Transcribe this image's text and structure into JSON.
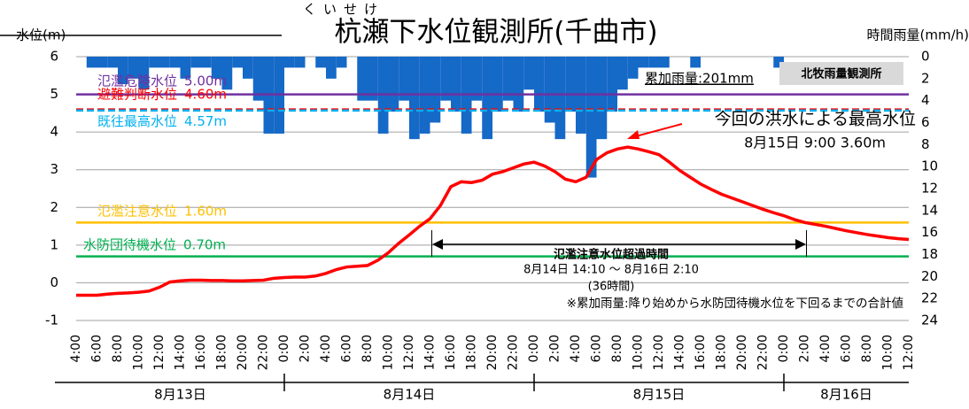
{
  "chart_data": {
    "type": "line",
    "title": "杭瀬下水位観測所(千曲市)",
    "title_ruby": "くいせけ",
    "y_label": "水位(m)",
    "y2_label": "時間雨量(mm/h)",
    "categories": [
      "4:00",
      null,
      "6:00",
      null,
      "8:00",
      null,
      "10:00",
      null,
      "12:00",
      null,
      "14:00",
      null,
      "16:00",
      null,
      "18:00",
      null,
      "20:00",
      null,
      "22:00",
      null,
      "0:00",
      null,
      "2:00",
      null,
      "4:00",
      null,
      "6:00",
      null,
      "8:00",
      null,
      "10:00",
      null,
      "12:00",
      null,
      "14:00",
      null,
      "16:00",
      null,
      "18:00",
      null,
      "20:00",
      null,
      "22:00",
      null,
      "0:00",
      null,
      "2:00",
      null,
      "4:00",
      null,
      "6:00",
      null,
      "8:00",
      null,
      "10:00",
      null,
      "12:00",
      null,
      "14:00",
      null,
      "16:00",
      null,
      "18:00",
      null,
      "20:00",
      null,
      "22:00",
      null,
      "0:00",
      null,
      "2:00",
      null,
      "4:00",
      null,
      "6:00",
      null,
      "8:00",
      null,
      "10:00",
      null,
      "12:00"
    ],
    "date_labels": [
      "8月13日",
      "8月14日",
      "8月15日",
      "8月16日"
    ],
    "series": [
      {
        "name": "水位",
        "color": "#ff0000",
        "values": [
          -0.33,
          -0.33,
          -0.33,
          -0.3,
          -0.28,
          -0.27,
          -0.25,
          -0.22,
          -0.12,
          0.02,
          0.05,
          0.07,
          0.07,
          0.06,
          0.06,
          0.05,
          0.05,
          0.06,
          0.07,
          0.12,
          0.14,
          0.15,
          0.15,
          0.18,
          0.25,
          0.35,
          0.42,
          0.44,
          0.46,
          0.6,
          0.8,
          1.05,
          1.27,
          1.5,
          1.7,
          2.05,
          2.55,
          2.68,
          2.66,
          2.72,
          2.88,
          2.95,
          3.05,
          3.15,
          3.2,
          3.1,
          2.95,
          2.75,
          2.68,
          2.8,
          3.27,
          3.45,
          3.55,
          3.6,
          3.55,
          3.48,
          3.4,
          3.2,
          2.98,
          2.8,
          2.62,
          2.48,
          2.35,
          2.25,
          2.15,
          2.05,
          1.95,
          1.86,
          1.78,
          1.68,
          1.6,
          1.55,
          1.5,
          1.44,
          1.38,
          1.33,
          1.28,
          1.24,
          1.2,
          1.17,
          1.15
        ]
      },
      {
        "name": "北牧雨量観測所",
        "color": "#1569c7",
        "axis": "y2",
        "values": [
          0,
          0,
          1,
          1,
          1,
          2.5,
          2,
          3,
          1,
          1,
          1,
          2,
          1,
          1,
          2,
          3,
          1,
          2,
          4,
          7,
          7,
          1,
          1,
          0,
          1,
          2,
          1,
          0,
          4,
          4,
          7,
          5,
          4,
          7.5,
          7,
          6,
          4,
          5,
          7,
          4,
          7.5,
          5,
          4,
          5,
          3,
          5,
          6,
          7.5,
          5,
          7,
          11,
          7.5,
          5,
          3,
          2,
          1,
          1,
          1,
          0,
          0,
          1,
          0,
          0,
          0,
          0,
          0,
          0,
          0,
          1,
          0,
          0,
          0,
          0,
          0,
          0,
          0,
          0,
          0,
          0,
          0,
          0
        ]
      }
    ],
    "ylim": [
      -1,
      6
    ],
    "yticks": [
      -1,
      0,
      1,
      2,
      3,
      4,
      5,
      6
    ],
    "y2lim": [
      0,
      24
    ],
    "y2ticks": [
      0,
      2,
      4,
      6,
      8,
      10,
      12,
      14,
      16,
      18,
      20,
      22,
      24
    ],
    "y2_inverted": true,
    "grid": true,
    "reference_lines": [
      {
        "label": "氾濫危険水位",
        "value": 5.0,
        "value_label": "5.00m",
        "color": "#7030a0",
        "dashed": false
      },
      {
        "label": "避難判断水位",
        "value": 4.6,
        "value_label": "4.60m",
        "color": "#ff0000",
        "dashed": true
      },
      {
        "label": "既往最高水位",
        "value": 4.57,
        "value_label": "4.57m",
        "color": "#00b0f0",
        "dashed": true
      },
      {
        "label": "氾濫注意水位",
        "value": 1.6,
        "value_label": "1.60m",
        "color": "#ffc000",
        "dashed": false
      },
      {
        "label": "水防団待機水位",
        "value": 0.7,
        "value_label": "0.70m",
        "color": "#00b050",
        "dashed": false
      }
    ],
    "annotations": {
      "peak_title": "今回の洪水による最高水位",
      "peak_detail": "8月15日 9:00 3.60m",
      "rain_total": "累加雨量:201mm",
      "station": "北牧雨量観測所",
      "span_title": "氾濫注意水位超過時間",
      "span_range": "8月14日 14:10 ～ 8月16日 2:10",
      "span_hours": "(36時間)",
      "note": "※累加雨量:降り始めから水防団待機水位を下回るまでの合計値"
    }
  }
}
